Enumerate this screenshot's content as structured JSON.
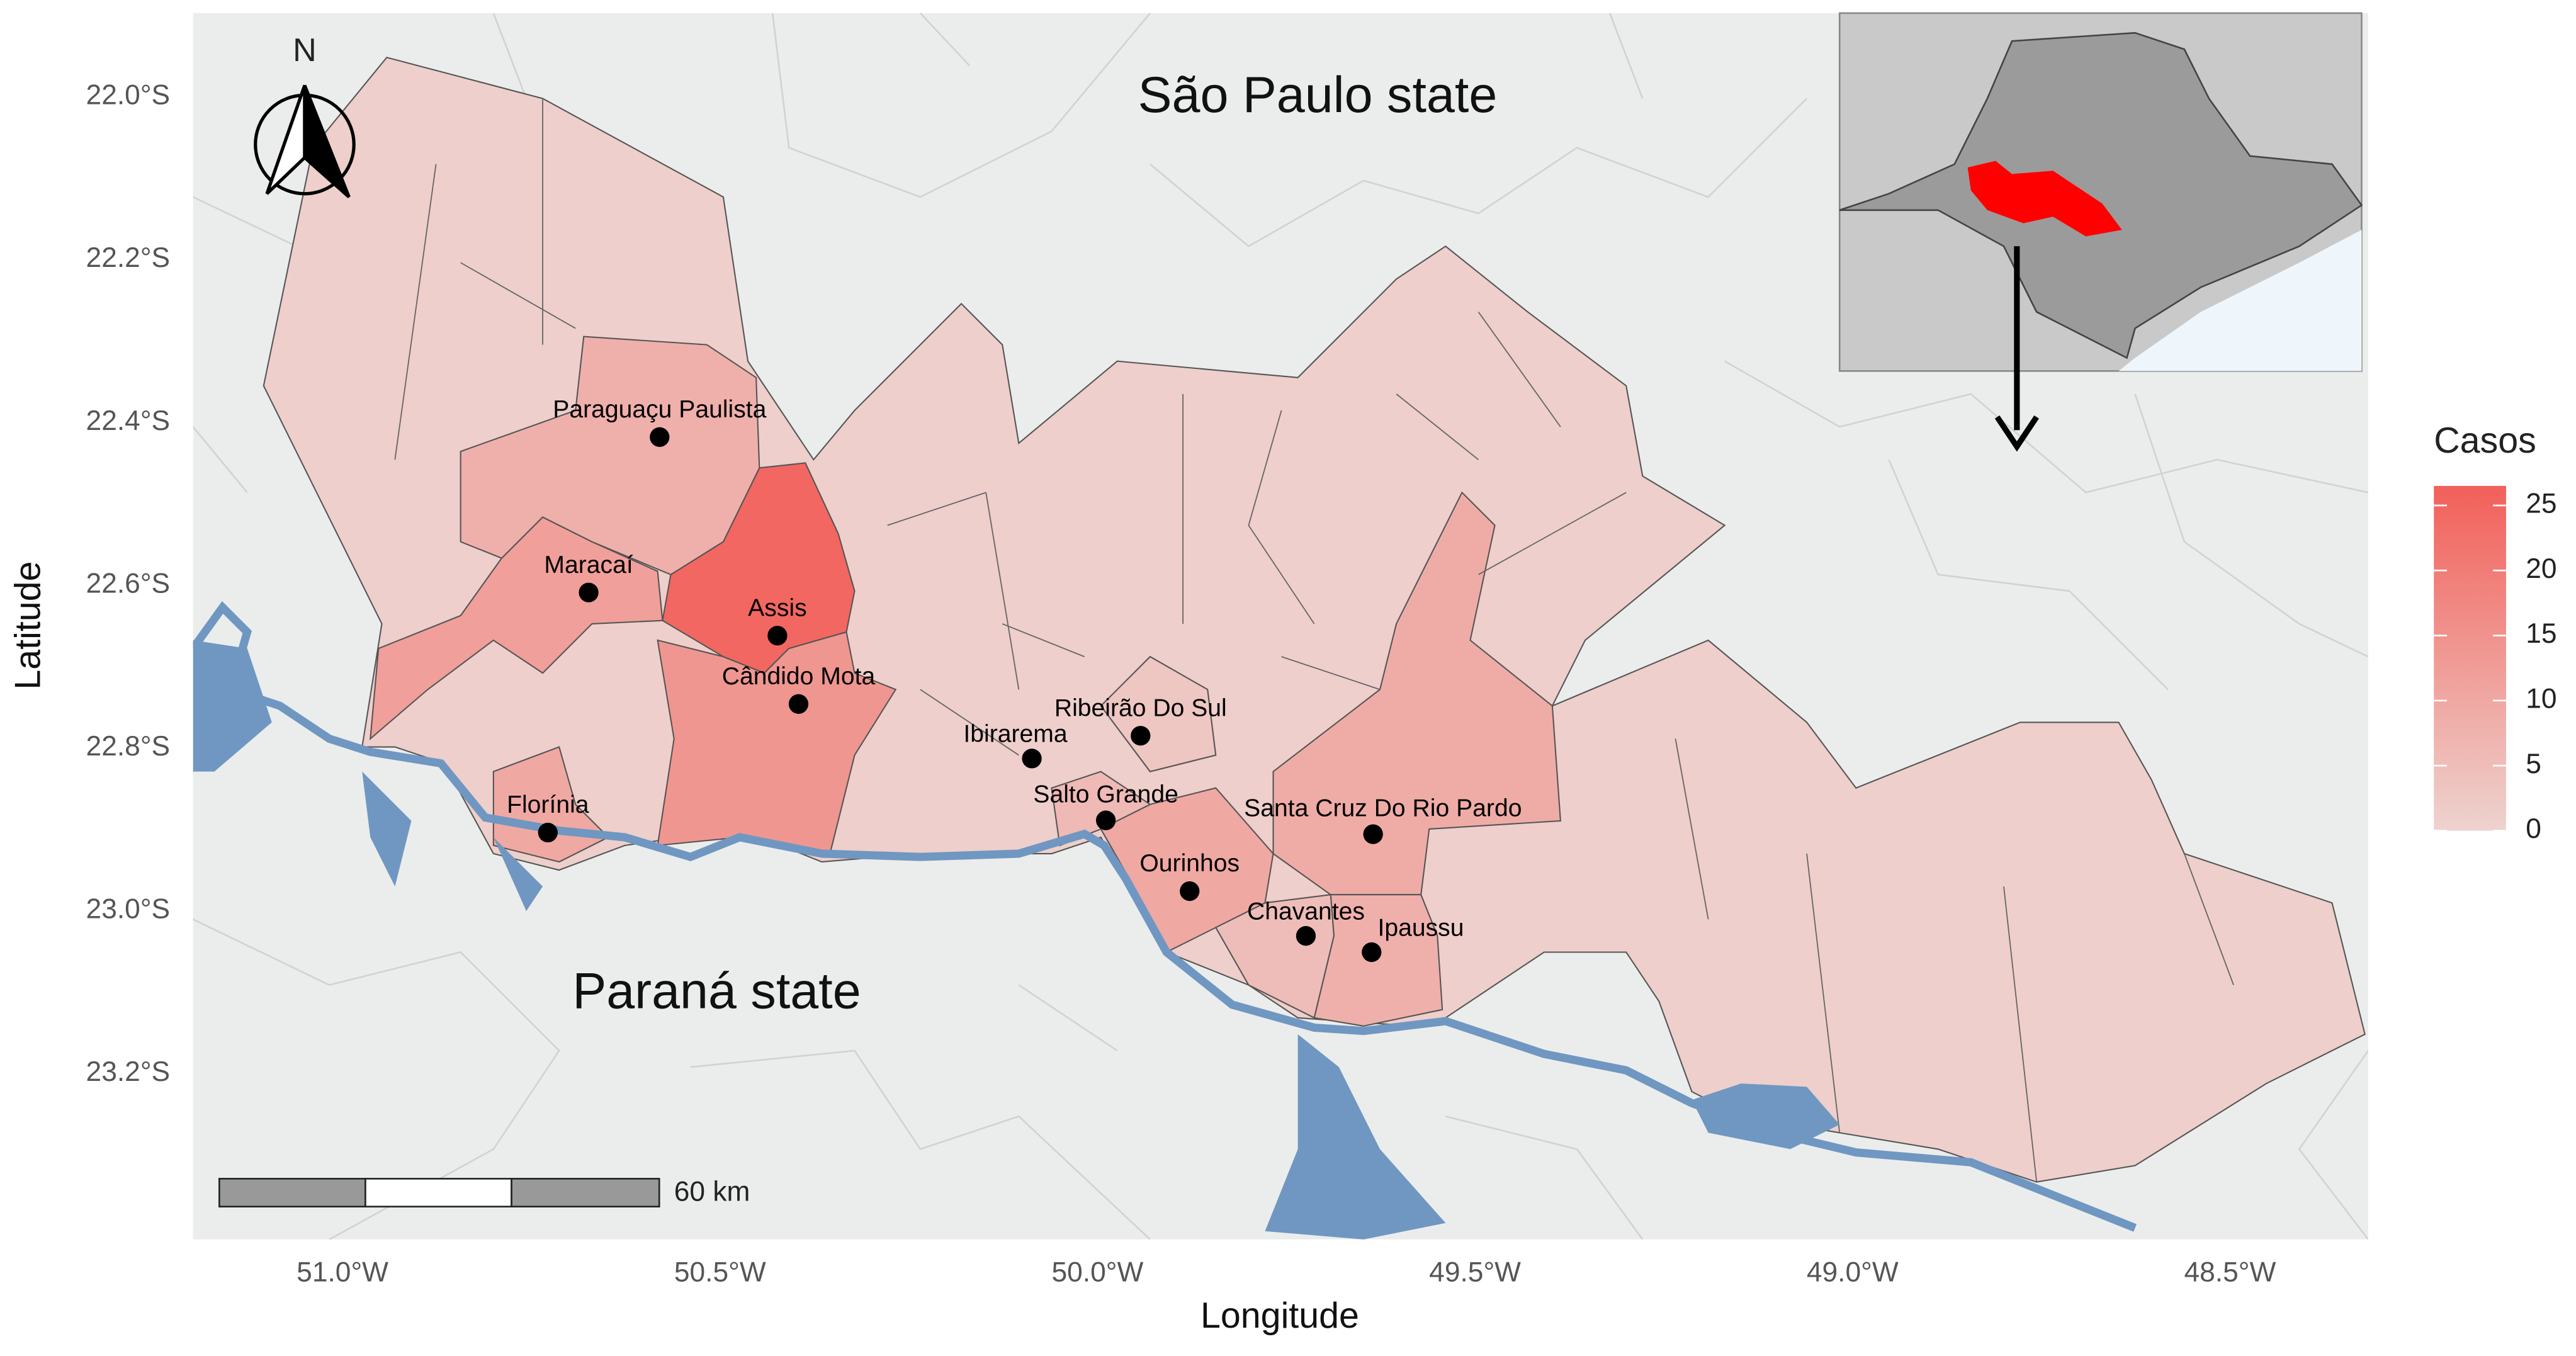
{
  "map": {
    "state_labels": [
      "São Paulo state",
      "Paraná state"
    ],
    "x_label": "Longitude",
    "y_label": "Latitude",
    "xlim": [
      -51.198,
      -48.317
    ],
    "ylim": [
      -23.404,
      -21.897
    ],
    "xticks": [
      {
        "value": -51.0,
        "label": "51.0°W"
      },
      {
        "value": -50.5,
        "label": "50.5°W"
      },
      {
        "value": -50.0,
        "label": "50.0°W"
      },
      {
        "value": -49.5,
        "label": "49.5°W"
      },
      {
        "value": -49.0,
        "label": "49.0°W"
      },
      {
        "value": -48.5,
        "label": "48.5°W"
      }
    ],
    "yticks": [
      {
        "value": -22.0,
        "label": "22.0°S"
      },
      {
        "value": -22.2,
        "label": "22.2°S"
      },
      {
        "value": -22.4,
        "label": "22.4°S"
      },
      {
        "value": -22.6,
        "label": "22.6°S"
      },
      {
        "value": -22.8,
        "label": "22.8°S"
      },
      {
        "value": -23.0,
        "label": "23.0°S"
      },
      {
        "value": -23.2,
        "label": "23.2°S"
      }
    ],
    "cities": [
      {
        "name": "Paraguaçu Paulista",
        "lon": -50.58,
        "lat": -22.418
      },
      {
        "name": "Maracaí",
        "lon": -50.674,
        "lat": -22.609
      },
      {
        "name": "Assis",
        "lon": -50.424,
        "lat": -22.662
      },
      {
        "name": "Cândido Mota",
        "lon": -50.396,
        "lat": -22.746
      },
      {
        "name": "Ibirarema",
        "lon": -50.087,
        "lat": -22.813
      },
      {
        "name": "Ribeirão Do Sul",
        "lon": -49.943,
        "lat": -22.785
      },
      {
        "name": "Salto Grande",
        "lon": -49.989,
        "lat": -22.889
      },
      {
        "name": "Florínia",
        "lon": -50.728,
        "lat": -22.904
      },
      {
        "name": "Santa Cruz Do Rio Pardo",
        "lon": -49.635,
        "lat": -22.906
      },
      {
        "name": "Ourinhos",
        "lon": -49.878,
        "lat": -22.976
      },
      {
        "name": "Chavantes",
        "lon": -49.724,
        "lat": -23.031
      },
      {
        "name": "Ipaussu",
        "lon": -49.637,
        "lat": -23.051
      }
    ],
    "regions": [
      {
        "cases": 1
      },
      {
        "cases": 25
      },
      {
        "cases": 12
      },
      {
        "cases": 8
      },
      {
        "cases": 14
      },
      {
        "cases": 10
      },
      {
        "cases": 9
      },
      {
        "cases": 10
      },
      {
        "cases": 5
      },
      {
        "cases": 8
      },
      {
        "cases": 6
      },
      {
        "cases": 3
      }
    ],
    "legend": {
      "title": "Casos",
      "lim": [
        0,
        26.5
      ],
      "ticks": [
        0,
        5,
        10,
        15,
        20,
        25
      ],
      "low_color": "#eed3cf",
      "high_color": "#f2605a"
    },
    "north": "N",
    "scale_bar": "60 km"
  }
}
